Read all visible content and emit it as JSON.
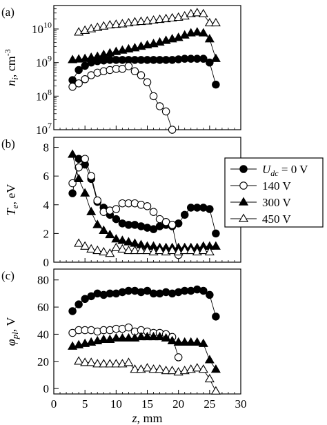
{
  "chart_data": [
    {
      "type": "line",
      "panel_label": "(a)",
      "ylabel_sym": "n",
      "ylabel_sub": "i",
      "ylabel_unit": ", cm",
      "ylabel_exp": "-3",
      "yscale": "log",
      "ylim": [
        10000000.0,
        50000000000.0
      ],
      "yticks": [
        {
          "value": 10000000.0,
          "base": "10",
          "exp": "7"
        },
        {
          "value": 100000000.0,
          "base": "10",
          "exp": "8"
        },
        {
          "value": 1000000000.0,
          "base": "10",
          "exp": "9"
        },
        {
          "value": 10000000000.0,
          "base": "10",
          "exp": "10"
        }
      ],
      "xlim": [
        0,
        30
      ],
      "series": [
        {
          "marker": "filled-circle",
          "x": [
            3,
            4,
            5,
            6,
            7,
            8,
            9,
            10,
            11,
            12,
            13,
            14,
            15,
            16,
            17,
            18,
            19,
            20,
            21,
            22,
            23,
            24,
            25,
            26
          ],
          "y": [
            300000000.0,
            600000000.0,
            800000000.0,
            1000000000.0,
            1100000000.0,
            1150000000.0,
            1200000000.0,
            1200000000.0,
            1200000000.0,
            1200000000.0,
            1200000000.0,
            1200000000.0,
            1200000000.0,
            1200000000.0,
            1200000000.0,
            1200000000.0,
            1200000000.0,
            1250000000.0,
            1300000000.0,
            1300000000.0,
            1300000000.0,
            1300000000.0,
            1000000000.0,
            220000000.0
          ]
        },
        {
          "marker": "open-circle",
          "x": [
            3,
            4,
            5,
            6,
            7,
            8,
            9,
            10,
            11,
            12,
            13,
            14,
            15,
            16,
            17,
            18,
            19
          ],
          "y": [
            190000000.0,
            240000000.0,
            320000000.0,
            420000000.0,
            500000000.0,
            550000000.0,
            600000000.0,
            650000000.0,
            650000000.0,
            780000000.0,
            550000000.0,
            420000000.0,
            260000000.0,
            100000000.0,
            50000000.0,
            35000000.0,
            10000000.0
          ]
        },
        {
          "marker": "filled-triangle",
          "x": [
            3,
            4,
            5,
            6,
            7,
            8,
            9,
            10,
            11,
            12,
            13,
            14,
            15,
            16,
            17,
            18,
            19,
            20,
            21,
            22,
            23,
            24,
            25,
            26
          ],
          "y": [
            1200000000.0,
            1250000000.0,
            1300000000.0,
            1400000000.0,
            1500000000.0,
            1700000000.0,
            1900000000.0,
            2100000000.0,
            2300000000.0,
            2500000000.0,
            2700000000.0,
            3000000000.0,
            3300000000.0,
            3600000000.0,
            4000000000.0,
            4500000000.0,
            5000000000.0,
            5500000000.0,
            6500000000.0,
            7500000000.0,
            8000000000.0,
            7500000000.0,
            5000000000.0,
            1300000000.0
          ]
        },
        {
          "marker": "open-triangle",
          "x": [
            4,
            5,
            6,
            7,
            8,
            9,
            10,
            11,
            12,
            13,
            14,
            15,
            16,
            17,
            18,
            19,
            20,
            21,
            22,
            23,
            24,
            25,
            26
          ],
          "y": [
            8000000000.0,
            9000000000.0,
            10000000000.0,
            11000000000.0,
            12000000000.0,
            13000000000.0,
            13500000000.0,
            14000000000.0,
            15000000000.0,
            16000000000.0,
            16500000000.0,
            17000000000.0,
            18000000000.0,
            19000000000.0,
            20000000000.0,
            21000000000.0,
            22000000000.0,
            24000000000.0,
            28000000000.0,
            30000000000.0,
            28000000000.0,
            15000000000.0,
            15000000000.0
          ]
        }
      ]
    },
    {
      "type": "line",
      "panel_label": "(b)",
      "ylabel_sym": "T",
      "ylabel_sub": "e",
      "ylabel_unit": ", eV",
      "yscale": "linear",
      "ylim": [
        0,
        8.7
      ],
      "yticks": [
        0,
        2,
        4,
        6,
        8
      ],
      "xlim": [
        0,
        30
      ],
      "series": [
        {
          "marker": "filled-circle",
          "x": [
            3,
            4,
            5,
            6,
            7,
            8,
            9,
            10,
            11,
            12,
            13,
            14,
            15,
            16,
            17,
            18,
            19,
            20,
            21,
            22,
            23,
            24,
            25,
            26
          ],
          "y": [
            4.8,
            7.2,
            6.8,
            5.8,
            4.2,
            3.8,
            3.3,
            3.0,
            2.7,
            2.6,
            2.6,
            2.5,
            2.4,
            2.3,
            2.5,
            2.6,
            2.5,
            2.7,
            3.3,
            3.8,
            3.8,
            3.8,
            3.7,
            2.0
          ]
        },
        {
          "marker": "open-circle",
          "x": [
            3,
            4,
            5,
            6,
            7,
            8,
            9,
            10,
            11,
            12,
            13,
            14,
            15,
            16,
            17,
            18,
            19,
            20
          ],
          "y": [
            5.5,
            6.6,
            7.2,
            6.0,
            4.3,
            3.5,
            3.6,
            3.7,
            4.1,
            4.1,
            4.1,
            4.0,
            3.9,
            3.5,
            3.0,
            2.8,
            2.6,
            0.5
          ]
        },
        {
          "marker": "filled-triangle",
          "x": [
            3,
            4,
            5,
            6,
            7,
            8,
            9,
            10,
            11,
            12,
            13,
            14,
            15,
            16,
            17,
            18,
            19,
            20,
            21,
            22,
            23,
            24,
            25,
            26
          ],
          "y": [
            7.5,
            5.8,
            4.8,
            3.5,
            2.6,
            2.2,
            1.9,
            1.6,
            1.5,
            1.4,
            1.3,
            1.2,
            1.1,
            1.1,
            1.0,
            1.0,
            1.0,
            1.0,
            1.0,
            1.0,
            1.0,
            1.1,
            1.1,
            1.1
          ]
        },
        {
          "marker": "open-triangle",
          "x": [
            4,
            5,
            6,
            7,
            8,
            9,
            10,
            11,
            12,
            13,
            14,
            15,
            16,
            17,
            18,
            19,
            20,
            21,
            22,
            23,
            24,
            25
          ],
          "y": [
            1.3,
            1.1,
            0.9,
            0.8,
            0.7,
            0.6,
            1.0,
            0.9,
            0.8,
            0.8,
            0.8,
            0.8,
            0.7,
            0.8,
            0.7,
            0.8,
            0.7,
            0.8,
            0.8,
            0.7,
            0.8,
            0.7
          ]
        }
      ]
    },
    {
      "type": "line",
      "panel_label": "(c)",
      "ylabel_sym": "φ",
      "ylabel_sub": "pl",
      "ylabel_unit": ", V",
      "yscale": "linear",
      "ylim": [
        -4,
        88
      ],
      "yticks": [
        0,
        20,
        40,
        60,
        80
      ],
      "xlim": [
        0,
        30
      ],
      "xticks": [
        0,
        5,
        10,
        15,
        20,
        25,
        30
      ],
      "xlabel_sym": "z",
      "xlabel_unit": ", mm",
      "series": [
        {
          "marker": "filled-circle",
          "x": [
            3,
            4,
            5,
            6,
            7,
            8,
            9,
            10,
            11,
            12,
            13,
            14,
            15,
            16,
            17,
            18,
            19,
            20,
            21,
            22,
            23,
            24,
            25,
            26
          ],
          "y": [
            57,
            62,
            66,
            68,
            70,
            69,
            70,
            70,
            71,
            72,
            72,
            71,
            72,
            70,
            70,
            71,
            70,
            71,
            72,
            72,
            73,
            72,
            69,
            53
          ]
        },
        {
          "marker": "open-circle",
          "x": [
            3,
            4,
            5,
            6,
            7,
            8,
            9,
            10,
            11,
            12,
            13,
            14,
            15,
            16,
            17,
            18,
            19,
            20
          ],
          "y": [
            41,
            43,
            43,
            43,
            42,
            43,
            43,
            44,
            44,
            45,
            42,
            43,
            42,
            41,
            41,
            40,
            38,
            23
          ]
        },
        {
          "marker": "filled-triangle",
          "x": [
            3,
            4,
            5,
            6,
            7,
            8,
            9,
            10,
            11,
            12,
            13,
            14,
            15,
            16,
            17,
            18,
            19,
            20,
            21,
            22,
            23,
            24,
            25,
            26
          ],
          "y": [
            31,
            32,
            33,
            34,
            35,
            36,
            36,
            37,
            37,
            37,
            37,
            38,
            38,
            38,
            38,
            37,
            35,
            34,
            34,
            34,
            34,
            33,
            21,
            14
          ]
        },
        {
          "marker": "open-triangle",
          "x": [
            4,
            5,
            6,
            7,
            8,
            9,
            10,
            11,
            12,
            13,
            14,
            15,
            16,
            17,
            18,
            19,
            20,
            21,
            22,
            23,
            24,
            25,
            26
          ],
          "y": [
            20,
            19,
            19,
            18,
            18,
            18,
            18,
            18,
            19,
            14,
            14,
            15,
            14,
            14,
            13,
            13,
            12,
            13,
            14,
            15,
            14,
            7,
            -2
          ]
        }
      ]
    }
  ],
  "legend": {
    "placement": "right-middle",
    "entries": [
      {
        "marker": "filled-circle",
        "sym": "U",
        "sub": "dc",
        "text": " = 0 V"
      },
      {
        "marker": "open-circle",
        "text": "140 V"
      },
      {
        "marker": "filled-triangle",
        "text": "300 V"
      },
      {
        "marker": "open-triangle",
        "text": "450 V"
      }
    ]
  },
  "colors": {
    "ink": "#000000",
    "fill_open": "#ffffff"
  }
}
